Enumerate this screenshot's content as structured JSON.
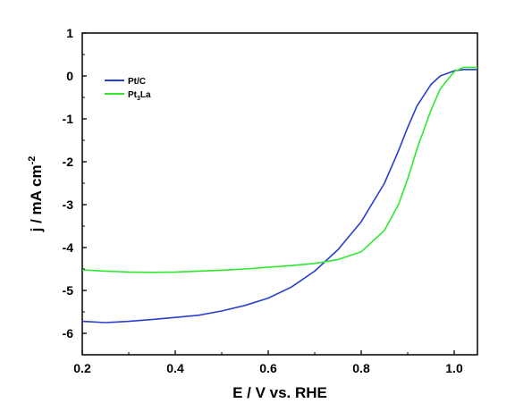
{
  "chart_data": {
    "type": "line",
    "title": "",
    "xlabel": "E / V vs. RHE",
    "ylabel": {
      "main": "j / mA cm",
      "sup": "-2"
    },
    "xlim": [
      0.2,
      1.05
    ],
    "ylim": [
      -6.5,
      1.0
    ],
    "xticks": [
      {
        "value": 0.2,
        "label": "0.2"
      },
      {
        "value": 0.4,
        "label": "0.4"
      },
      {
        "value": 0.6,
        "label": "0.6"
      },
      {
        "value": 0.8,
        "label": "0.8"
      },
      {
        "value": 1.0,
        "label": "1.0"
      }
    ],
    "yticks": [
      {
        "value": 1,
        "label": "1"
      },
      {
        "value": 0,
        "label": "0"
      },
      {
        "value": -1,
        "label": "-1"
      },
      {
        "value": -2,
        "label": "-2"
      },
      {
        "value": -3,
        "label": "-3"
      },
      {
        "value": -4,
        "label": "-4"
      },
      {
        "value": -5,
        "label": "-5"
      },
      {
        "value": -6,
        "label": "-6"
      }
    ],
    "grid": false,
    "legend_position": "top-left",
    "series": [
      {
        "name": "Pt/C",
        "legend": {
          "main": "Pt/C",
          "sub": "",
          "tail": ""
        },
        "color": "#2a3fcc",
        "x": [
          0.2,
          0.25,
          0.3,
          0.35,
          0.4,
          0.45,
          0.5,
          0.55,
          0.6,
          0.65,
          0.7,
          0.75,
          0.8,
          0.85,
          0.88,
          0.9,
          0.92,
          0.95,
          0.97,
          1.0,
          1.02,
          1.05
        ],
        "y": [
          -5.72,
          -5.75,
          -5.72,
          -5.68,
          -5.63,
          -5.58,
          -5.48,
          -5.35,
          -5.18,
          -4.92,
          -4.55,
          -4.05,
          -3.4,
          -2.5,
          -1.75,
          -1.2,
          -0.7,
          -0.2,
          0.0,
          0.12,
          0.15,
          0.15
        ]
      },
      {
        "name": "Pt3La",
        "legend": {
          "main": "Pt",
          "sub": "3",
          "tail": "La"
        },
        "color": "#2ee82e",
        "x": [
          0.2,
          0.25,
          0.3,
          0.35,
          0.4,
          0.45,
          0.5,
          0.55,
          0.6,
          0.65,
          0.7,
          0.75,
          0.8,
          0.85,
          0.88,
          0.9,
          0.92,
          0.95,
          0.97,
          1.0,
          1.02,
          1.05
        ],
        "y": [
          -4.52,
          -4.55,
          -4.57,
          -4.58,
          -4.57,
          -4.55,
          -4.53,
          -4.5,
          -4.46,
          -4.42,
          -4.37,
          -4.28,
          -4.1,
          -3.6,
          -3.0,
          -2.4,
          -1.7,
          -0.8,
          -0.3,
          0.1,
          0.2,
          0.2
        ]
      }
    ]
  }
}
